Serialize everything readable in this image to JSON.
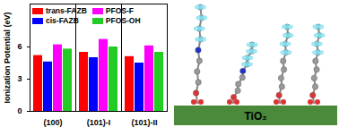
{
  "chart_data": {
    "type": "bar",
    "categories": [
      "(100)",
      "(101)-I",
      "(101)-II"
    ],
    "series": [
      {
        "name": "trans-FAZB",
        "color": "#ff0000",
        "values": [
          5.2,
          5.5,
          5.1
        ]
      },
      {
        "name": "cis-FAZB",
        "color": "#0000ff",
        "values": [
          4.6,
          5.0,
          4.5
        ]
      },
      {
        "name": "PFOS-F",
        "color": "#ff00ff",
        "values": [
          6.2,
          6.7,
          6.1
        ]
      },
      {
        "name": "PFOS-OH",
        "color": "#22cc22",
        "values": [
          5.8,
          6.0,
          5.5
        ]
      }
    ],
    "ylabel": "Ionization Potential (eV)",
    "ylim": [
      0,
      10
    ],
    "yticks": [
      0,
      3,
      6
    ],
    "legend": "top"
  },
  "diagram": {
    "substrate": "TiO₂"
  }
}
